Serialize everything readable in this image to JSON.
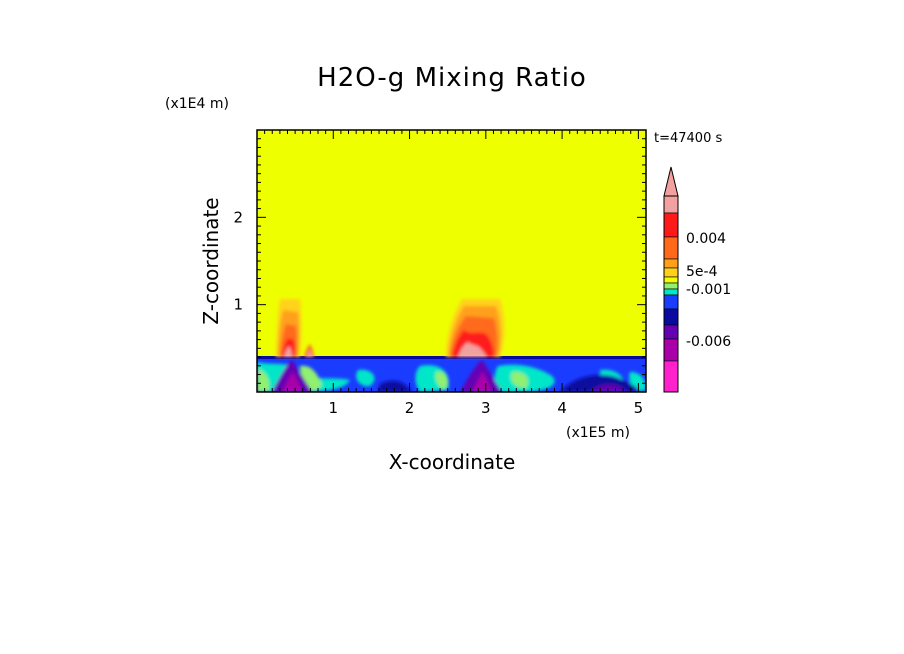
{
  "chart_data": {
    "type": "heatmap",
    "title": "H2O-g Mixing Ratio",
    "xlabel": "X-coordinate",
    "ylabel": "Z-coordinate",
    "x_unit": "(x1E5 m)",
    "y_unit": "(x1E4 m)",
    "time_label": "t=47400 s",
    "xlim": [
      0,
      5.1
    ],
    "ylim": [
      0,
      3.0
    ],
    "x_ticks": [
      1,
      2,
      3,
      4,
      5
    ],
    "y_ticks": [
      1,
      2
    ],
    "background_level_color": "#eeff00",
    "colorbar": {
      "tick_labels": [
        "0.004",
        "5e-4",
        "-0.001",
        "-0.006"
      ],
      "colors_top_to_bottom": [
        "#f2a0a0",
        "#ff1a1a",
        "#ff6a1a",
        "#ffa01a",
        "#ffd21a",
        "#eeff00",
        "#90f070",
        "#00e6c8",
        "#1a3cff",
        "#0a0aa0",
        "#6600b3",
        "#aa00aa",
        "#ff22cc"
      ]
    }
  }
}
